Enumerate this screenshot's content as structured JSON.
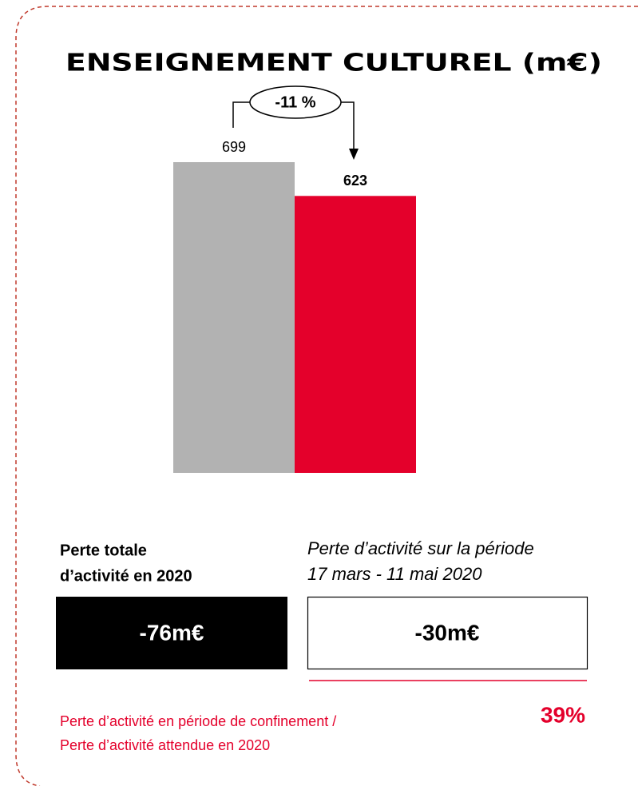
{
  "chart_data": {
    "type": "bar",
    "title": "ENSEIGNEMENT CULTUREL (m€)",
    "categories": [
      null,
      null
    ],
    "values": [
      699,
      623
    ],
    "colors": [
      "#b2b2b2",
      "#e4002b"
    ],
    "annotation": "-11 %"
  },
  "panels": {
    "total": {
      "label": [
        "Perte totale",
        "d’activité en 2020"
      ],
      "value": "-76m€"
    },
    "period": {
      "label": [
        "Perte d’activité sur la période",
        "17 mars - 11 mai 2020"
      ],
      "value": "-30m€"
    }
  },
  "ratio": {
    "label": [
      "Perte d’activité en période de confinement /",
      "Perte d’activité attendue en 2020"
    ],
    "value": "39%"
  }
}
